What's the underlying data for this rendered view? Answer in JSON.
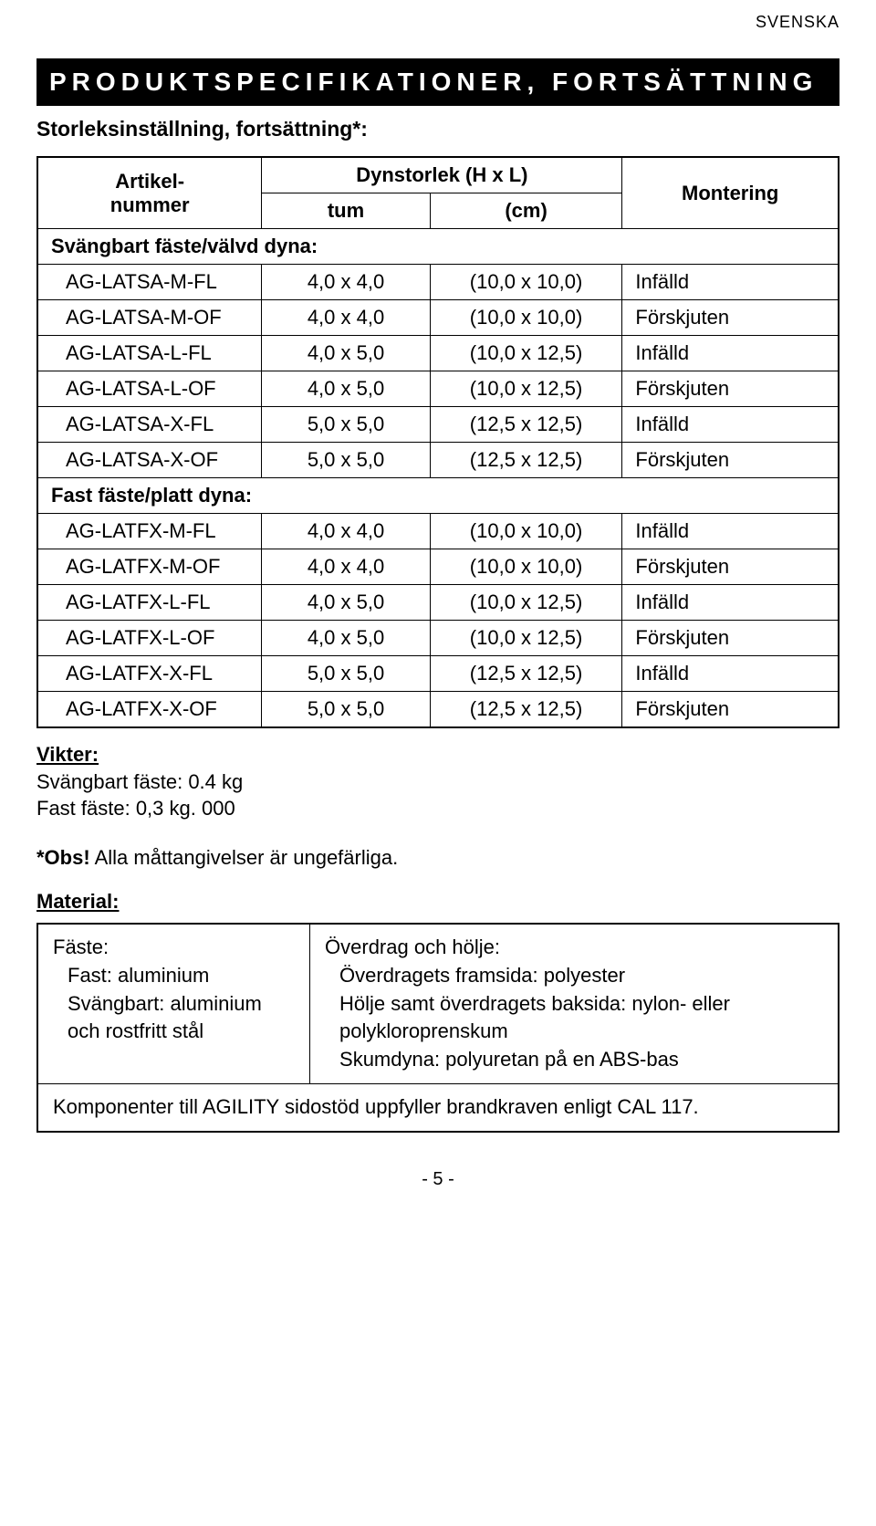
{
  "lang_tag": "SVENSKA",
  "header_bar": "PRODUKTSPECIFIKATIONER, FORTSÄTTNING",
  "subtitle": "Storleksinställning, fortsättning*:",
  "table": {
    "col_article_line1": "Artikel-",
    "col_article_line2": "nummer",
    "col_size_header": "Dynstorlek (H x L)",
    "col_tum": "tum",
    "col_cm": "(cm)",
    "col_mount": "Montering",
    "section1_label": "Svängbart fäste/välvd dyna:",
    "section2_label": "Fast fäste/platt dyna:",
    "rows1": [
      {
        "a": "AG-LATSA-M-FL",
        "t": "4,0 x 4,0",
        "c": "(10,0 x 10,0)",
        "m": "Infälld"
      },
      {
        "a": "AG-LATSA-M-OF",
        "t": "4,0 x 4,0",
        "c": "(10,0 x 10,0)",
        "m": "Förskjuten"
      },
      {
        "a": "AG-LATSA-L-FL",
        "t": "4,0 x 5,0",
        "c": "(10,0 x 12,5)",
        "m": "Infälld"
      },
      {
        "a": "AG-LATSA-L-OF",
        "t": "4,0 x 5,0",
        "c": "(10,0 x 12,5)",
        "m": "Förskjuten"
      },
      {
        "a": "AG-LATSA-X-FL",
        "t": "5,0 x 5,0",
        "c": "(12,5 x 12,5)",
        "m": "Infälld"
      },
      {
        "a": "AG-LATSA-X-OF",
        "t": "5,0 x 5,0",
        "c": "(12,5 x 12,5)",
        "m": "Förskjuten"
      }
    ],
    "rows2": [
      {
        "a": "AG-LATFX-M-FL",
        "t": "4,0 x 4,0",
        "c": "(10,0 x 10,0)",
        "m": "Infälld"
      },
      {
        "a": "AG-LATFX-M-OF",
        "t": "4,0 x 4,0",
        "c": "(10,0 x 10,0)",
        "m": "Förskjuten"
      },
      {
        "a": "AG-LATFX-L-FL",
        "t": "4,0 x 5,0",
        "c": "(10,0 x 12,5)",
        "m": "Infälld"
      },
      {
        "a": "AG-LATFX-L-OF",
        "t": "4,0 x 5,0",
        "c": "(10,0 x 12,5)",
        "m": "Förskjuten"
      },
      {
        "a": "AG-LATFX-X-FL",
        "t": "5,0 x 5,0",
        "c": "(12,5 x 12,5)",
        "m": "Infälld"
      },
      {
        "a": "AG-LATFX-X-OF",
        "t": "5,0 x 5,0",
        "c": "(12,5 x 12,5)",
        "m": "Förskjuten"
      }
    ]
  },
  "vikter": {
    "heading": "Vikter:",
    "line1": "Svängbart fäste: 0.4 kg",
    "line2": "Fast fäste: 0,3 kg. 000"
  },
  "obs": {
    "bold": "*Obs!",
    "rest": " Alla måttangivelser är ungefärliga."
  },
  "material": {
    "heading": "Material:",
    "left_title": "Fäste:",
    "left_line1": "Fast: aluminium",
    "left_line2": "Svängbart: aluminium och rostfritt stål",
    "right_title": "Överdrag och hölje:",
    "right_line1": "Överdragets framsida: polyester",
    "right_line2": "Hölje samt överdragets baksida: nylon- eller polykloroprenskum",
    "right_line3": "Skumdyna: polyuretan på en ABS-bas",
    "bottom": "Komponenter till AGILITY sidostöd uppfyller brandkraven enligt CAL 117."
  },
  "page_number": "- 5 -",
  "colors": {
    "bg": "#ffffff",
    "text": "#000000",
    "bar_bg": "#000000",
    "bar_text": "#ffffff",
    "border": "#000000"
  }
}
